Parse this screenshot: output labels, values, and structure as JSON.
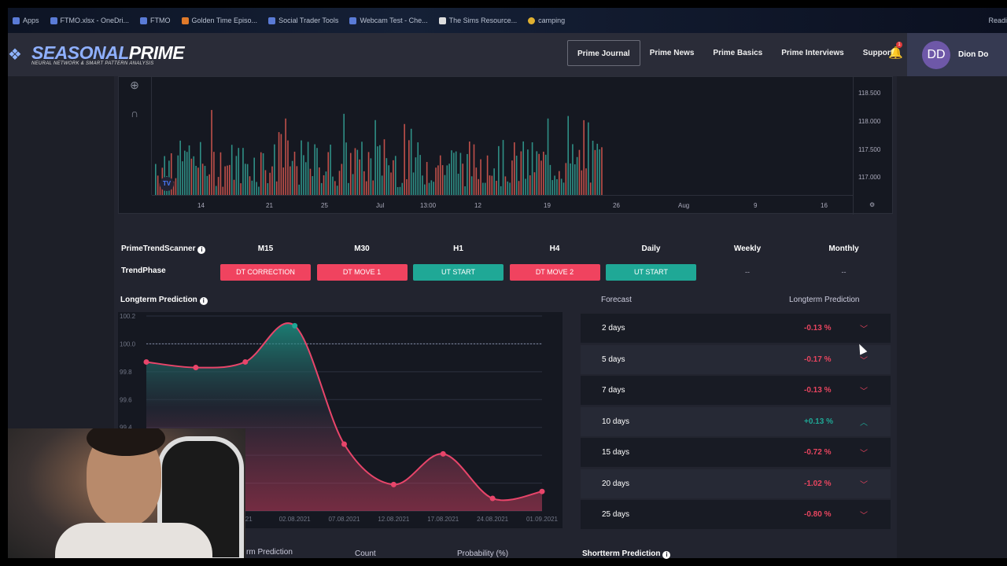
{
  "bookmarks": [
    "Apps",
    "FTMO.xlsx - OneDri...",
    "FTMO",
    "Golden Time Episo...",
    "Social Trader Tools",
    "Webcam Test - Che...",
    "The Sims Resource...",
    "camping"
  ],
  "browser_right": "Readi",
  "logo": {
    "brand_light": "SEASONAL",
    "brand_bold": "PRIME",
    "tagline": "NEURAL NETWORK & SMART PATTERN ANALYSIS"
  },
  "nav": [
    {
      "label": "Prime Journal",
      "active": true
    },
    {
      "label": "Prime News"
    },
    {
      "label": "Prime Basics"
    },
    {
      "label": "Prime Interviews"
    },
    {
      "label": "Support"
    }
  ],
  "notifications": {
    "count": "1"
  },
  "user": {
    "initials": "DD",
    "name": "Dion Do"
  },
  "price_chart": {
    "y_ticks": [
      "118.500",
      "118.000",
      "117.500",
      "117.000"
    ],
    "x_ticks": [
      "14",
      "21",
      "25",
      "Jul",
      "13:00",
      "12",
      "19",
      "26",
      "Aug",
      "9",
      "16"
    ],
    "logo_text": "TV"
  },
  "scanner": {
    "title": "PrimeTrendScanner",
    "row_label": "TrendPhase",
    "columns": [
      {
        "tf": "M15",
        "phase": "DT CORRECTION",
        "kind": "down"
      },
      {
        "tf": "M30",
        "phase": "DT MOVE 1",
        "kind": "down"
      },
      {
        "tf": "H1",
        "phase": "UT START",
        "kind": "up"
      },
      {
        "tf": "H4",
        "phase": "DT MOVE 2",
        "kind": "down"
      },
      {
        "tf": "Daily",
        "phase": "UT START",
        "kind": "up"
      },
      {
        "tf": "Weekly",
        "phase": "--",
        "kind": "none"
      },
      {
        "tf": "Monthly",
        "phase": "--",
        "kind": "none"
      }
    ]
  },
  "longterm": {
    "title": "Longterm Prediction"
  },
  "chart_data": {
    "type": "area",
    "x": [
      "",
      "",
      "2021",
      "02.08.2021",
      "07.08.2021",
      "12.08.2021",
      "17.08.2021",
      "24.08.2021",
      "01.09.2021"
    ],
    "values": [
      99.87,
      99.83,
      99.87,
      100.13,
      99.28,
      98.99,
      99.21,
      98.89,
      98.94
    ],
    "y_ticks": [
      "100.2",
      "100.0",
      "99.8",
      "99.6",
      "99.4"
    ],
    "ylim": [
      98.8,
      100.2
    ],
    "reference_line": 100.0,
    "grid": true,
    "colors": {
      "above": "#1fa896",
      "below": "#e8456a"
    }
  },
  "forecast": {
    "col1": "Forecast",
    "col2": "Longterm Prediction",
    "rows": [
      {
        "period": "2 days",
        "value": "-0.13 %",
        "dir": "down"
      },
      {
        "period": "5 days",
        "value": "-0.17 %",
        "dir": "down"
      },
      {
        "period": "7 days",
        "value": "-0.13 %",
        "dir": "down"
      },
      {
        "period": "10 days",
        "value": "+0.13 %",
        "dir": "up"
      },
      {
        "period": "15 days",
        "value": "-0.72 %",
        "dir": "down"
      },
      {
        "period": "20 days",
        "value": "-1.02 %",
        "dir": "down"
      },
      {
        "period": "25 days",
        "value": "-0.80 %",
        "dir": "down"
      }
    ]
  },
  "bottom": {
    "col1": "rm Prediction",
    "col2": "Count",
    "col3": "Probability (%)",
    "shortterm": "Shortterm Prediction"
  },
  "colors": {
    "down": "#f0435f",
    "up": "#1fa896",
    "down_text": "#e8455f",
    "up_text": "#1fa896"
  }
}
